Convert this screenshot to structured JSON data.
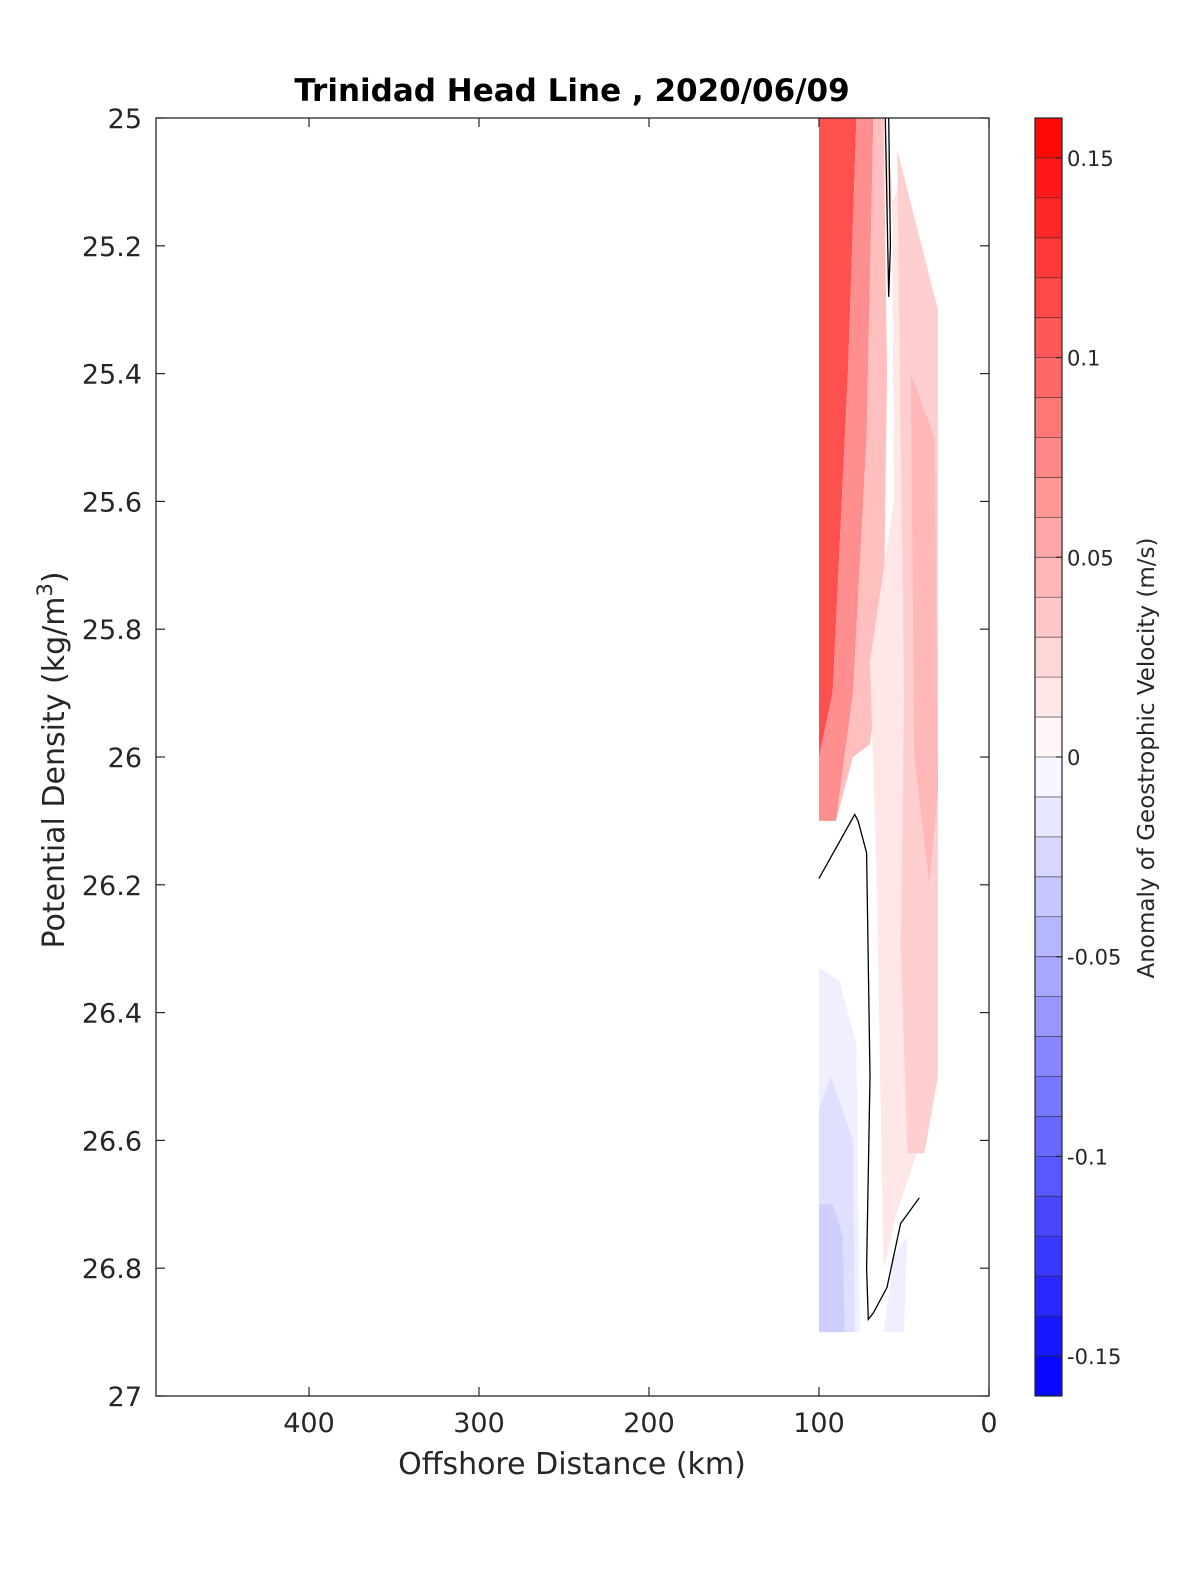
{
  "chart_data": {
    "type": "heatmap",
    "title": "Trinidad Head Line , 2020/06/09",
    "xlabel": "Offshore Distance (km)",
    "ylabel": "Potential Density (kg/m",
    "ylabel_superscript": "3",
    "ylabel_suffix": ")",
    "colorbar_label": "Anomaly of Geostrophic Velocity (m/s)",
    "xlim": [
      490,
      0
    ],
    "x_reversed": true,
    "ylim": [
      25,
      27
    ],
    "y_reversed": true,
    "x_ticks": [
      400,
      300,
      200,
      100,
      0
    ],
    "x_tick_labels": [
      "400",
      "300",
      "200",
      "100",
      "0"
    ],
    "y_ticks": [
      25,
      25.2,
      25.4,
      25.6,
      25.8,
      26,
      26.2,
      26.4,
      26.6,
      26.8,
      27
    ],
    "y_tick_labels": [
      "25",
      "25.2",
      "25.4",
      "25.6",
      "25.8",
      "26",
      "26.2",
      "26.4",
      "26.6",
      "26.8",
      "27"
    ],
    "clim": [
      -0.16,
      0.16
    ],
    "colorbar_ticks": [
      0.15,
      0.1,
      0.05,
      0,
      -0.05,
      -0.1,
      -0.15
    ],
    "colorbar_tick_labels": [
      "0.15",
      "0.1",
      "0.05",
      "0",
      "-0.05",
      "-0.1",
      "-0.15"
    ],
    "colorbar_step": 0.01,
    "colormap": {
      "negative": "#0000ff",
      "zero": "#ffffff",
      "positive": "#ff0000"
    },
    "grid": false,
    "legend": "none",
    "regions": [
      {
        "value": 0.11,
        "points": [
          [
            100,
            25.0
          ],
          [
            78,
            25.0
          ],
          [
            83,
            25.4
          ],
          [
            92,
            25.9
          ],
          [
            100,
            26.0
          ]
        ]
      },
      {
        "value": 0.07,
        "points": [
          [
            78,
            25.0
          ],
          [
            68,
            25.0
          ],
          [
            72,
            25.5
          ],
          [
            80,
            25.9
          ],
          [
            90,
            26.1
          ],
          [
            100,
            26.1
          ],
          [
            100,
            26.0
          ],
          [
            92,
            25.9
          ],
          [
            83,
            25.4
          ]
        ]
      },
      {
        "value": 0.04,
        "points": [
          [
            68,
            25.0
          ],
          [
            62,
            25.0
          ],
          [
            60,
            25.4
          ],
          [
            62,
            25.8
          ],
          [
            70,
            25.98
          ],
          [
            80,
            26.0
          ],
          [
            90,
            26.1
          ],
          [
            80,
            25.9
          ],
          [
            72,
            25.5
          ]
        ]
      },
      {
        "value": 0.015,
        "points": [
          [
            62,
            25.0
          ],
          [
            57,
            25.1
          ],
          [
            56,
            25.6
          ],
          [
            70,
            25.85
          ],
          [
            66,
            26.2
          ],
          [
            62,
            26.8
          ],
          [
            60,
            26.78
          ],
          [
            55,
            26.72
          ],
          [
            40,
            26.6
          ],
          [
            30,
            26.5
          ],
          [
            30,
            26.05
          ],
          [
            45,
            25.9
          ],
          [
            50,
            25.5
          ],
          [
            52,
            25.1
          ],
          [
            60,
            25.15
          ]
        ]
      },
      {
        "value": 0.03,
        "points": [
          [
            54,
            25.05
          ],
          [
            30,
            25.3
          ],
          [
            30,
            26.5
          ],
          [
            38,
            26.62
          ],
          [
            48,
            26.62
          ],
          [
            52,
            26.3
          ],
          [
            50,
            25.9
          ],
          [
            52,
            25.5
          ]
        ]
      },
      {
        "value": 0.045,
        "points": [
          [
            46,
            25.4
          ],
          [
            32,
            25.5
          ],
          [
            30,
            26.05
          ],
          [
            35,
            26.2
          ],
          [
            44,
            26.0
          ]
        ]
      },
      {
        "value": -0.01,
        "points": [
          [
            100,
            26.33
          ],
          [
            88,
            26.35
          ],
          [
            78,
            26.45
          ],
          [
            76,
            26.9
          ],
          [
            100,
            26.9
          ]
        ]
      },
      {
        "value": -0.02,
        "points": [
          [
            100,
            26.55
          ],
          [
            93,
            26.5
          ],
          [
            80,
            26.6
          ],
          [
            79,
            26.9
          ],
          [
            100,
            26.9
          ]
        ]
      },
      {
        "value": -0.03,
        "points": [
          [
            100,
            26.7
          ],
          [
            92,
            26.7
          ],
          [
            86,
            26.75
          ],
          [
            85,
            26.9
          ],
          [
            100,
            26.9
          ]
        ]
      },
      {
        "value": -0.01,
        "points": [
          [
            62,
            26.9
          ],
          [
            56,
            26.78
          ],
          [
            48,
            26.75
          ],
          [
            50,
            26.9
          ]
        ]
      }
    ],
    "contours": [
      {
        "value": 0,
        "points": [
          [
            61,
            25.0
          ],
          [
            59,
            25.28
          ],
          [
            58,
            25.2
          ],
          [
            59,
            25.0
          ]
        ]
      },
      {
        "value": 0,
        "points": [
          [
            100,
            26.19
          ],
          [
            79,
            26.09
          ],
          [
            77,
            26.1
          ],
          [
            72,
            26.15
          ],
          [
            70,
            26.5
          ],
          [
            72,
            26.8
          ],
          [
            71,
            26.88
          ],
          [
            68,
            26.87
          ],
          [
            60,
            26.83
          ],
          [
            52,
            26.73
          ],
          [
            41,
            26.69
          ]
        ]
      }
    ]
  }
}
